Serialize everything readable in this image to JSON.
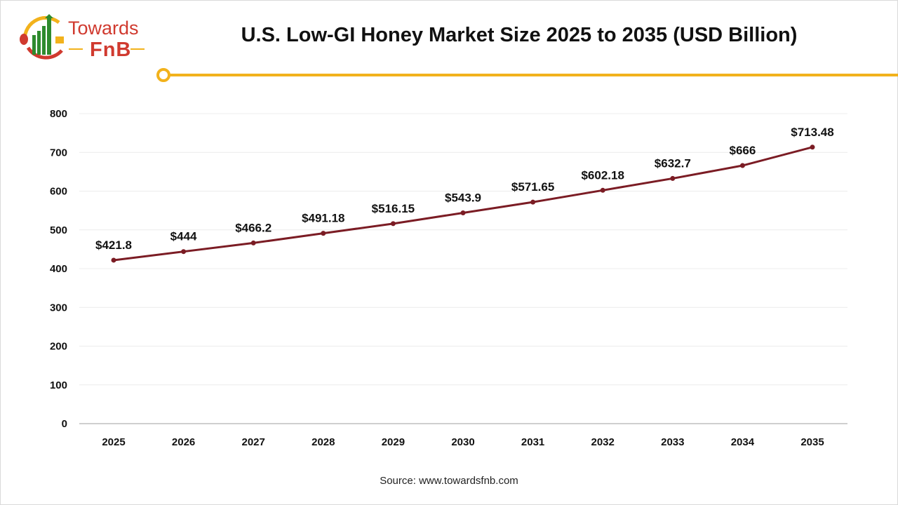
{
  "logo": {
    "line1": "Towards",
    "line2": "FnB"
  },
  "colors": {
    "line": "#7b1c24",
    "accent": "#f2b21c",
    "brand_red": "#d03a2f",
    "brand_green": "#2e8b2e"
  },
  "source": "Source: www.towardsfnb.com",
  "chart_data": {
    "type": "line",
    "title": "U.S. Low-GI Honey Market Size 2025 to 2035 (USD Billion)",
    "categories": [
      "2025",
      "2026",
      "2027",
      "2028",
      "2029",
      "2030",
      "2031",
      "2032",
      "2033",
      "2034",
      "2035"
    ],
    "values": [
      421.8,
      444,
      466.2,
      491.18,
      516.15,
      543.9,
      571.65,
      602.18,
      632.7,
      666,
      713.48
    ],
    "data_labels": [
      "$421.8",
      "$444",
      "$466.2",
      "$491.18",
      "$516.15",
      "$543.9",
      "$571.65",
      "$602.18",
      "$632.7",
      "$666",
      "$713.48"
    ],
    "ylim": [
      0,
      800
    ],
    "yticks": [
      "0",
      "100",
      "200",
      "300",
      "400",
      "500",
      "600",
      "700",
      "800"
    ],
    "grid": true,
    "xlabel": "",
    "ylabel": ""
  }
}
